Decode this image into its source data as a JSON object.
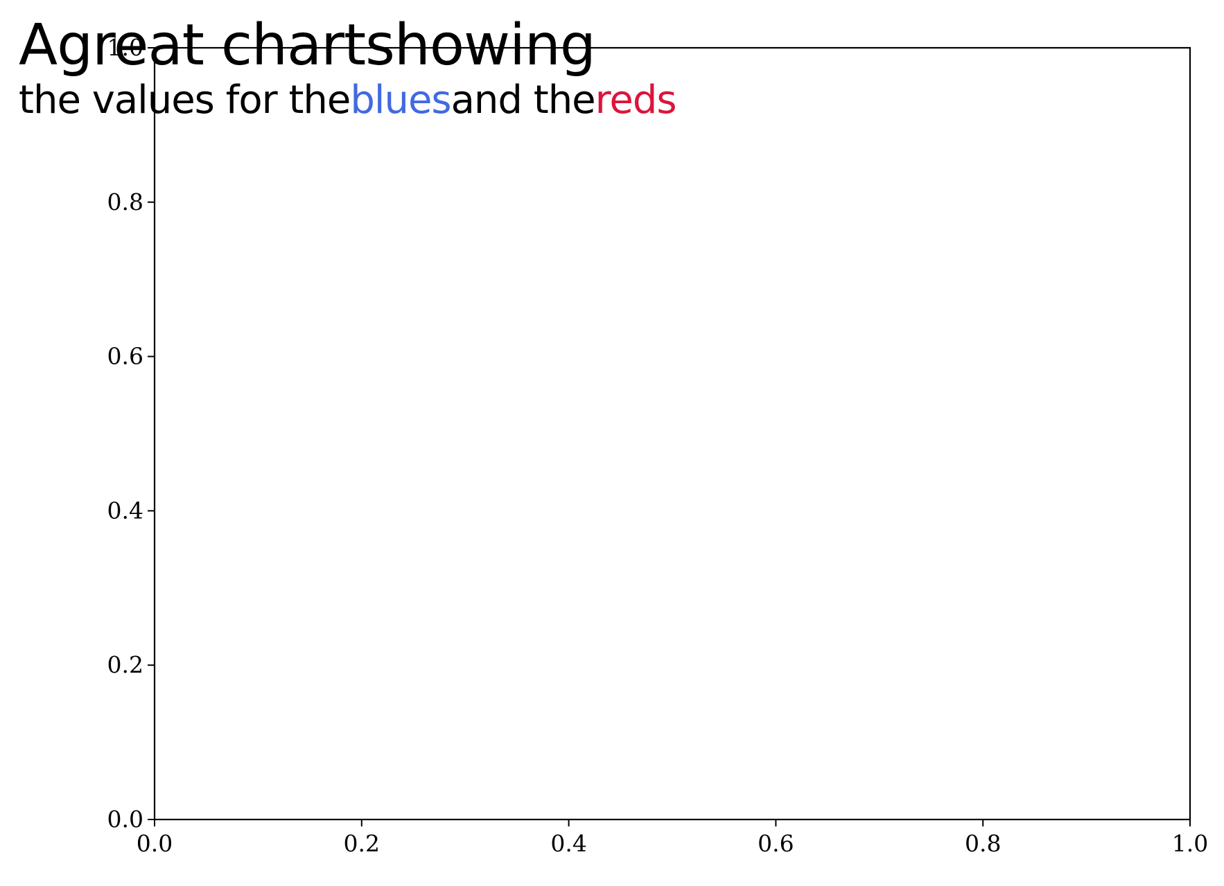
{
  "chart_data": {
    "type": "line",
    "title": {
      "line1": "Agreat chartshowing",
      "line2_parts": [
        {
          "text": "the values for the",
          "color": "#000000"
        },
        {
          "text": "blues",
          "color": "#4169E1"
        },
        {
          "text": "and the",
          "color": "#000000"
        },
        {
          "text": "reds",
          "color": "#DC143C"
        }
      ]
    },
    "series": [],
    "xlabel": "",
    "ylabel": "",
    "xlim": [
      0.0,
      1.0
    ],
    "ylim": [
      0.0,
      1.0
    ],
    "x_ticks": [
      "0.0",
      "0.2",
      "0.4",
      "0.6",
      "0.8",
      "1.0"
    ],
    "y_ticks": [
      "0.0",
      "0.2",
      "0.4",
      "0.6",
      "0.8",
      "1.0"
    ],
    "grid": false,
    "legend": "none",
    "colors": {
      "blues": "#4169E1",
      "reds": "#DC143C",
      "axes": "#000000"
    }
  }
}
